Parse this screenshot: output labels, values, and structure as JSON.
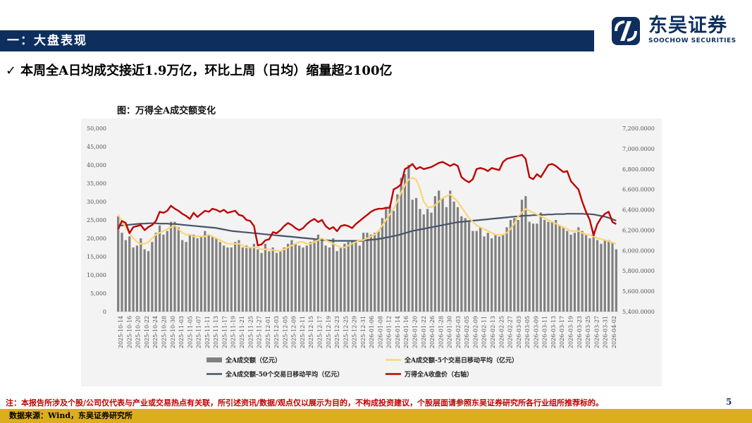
{
  "header": {
    "title": "一：大盘表现"
  },
  "logo": {
    "name_cn": "东吴证券",
    "name_en": "SOOCHOW SECURITIES"
  },
  "headline": {
    "check": "✓",
    "text": "本周全A日均成交接近1.9万亿，环比上周（日均）缩量超2100亿"
  },
  "figure": {
    "title": "图：万得全A成交额变化"
  },
  "footer": {
    "note": "注：本报告所涉及个股/公司仅代表与产业或交易热点有关联，所引述资讯/数据/观点仅以展示为目的，不构成投资建议，个股层面请参照东吴证券研究所各行业组所推荐标的。",
    "page": "5",
    "source": "数据来源：Wind，东吴证券研究所"
  },
  "colors": {
    "brand": "#0e2f5e",
    "bar": "#808080",
    "ma5": "#fcd573",
    "ma50": "#44546a",
    "index": "#c00000",
    "source_bar": "#dcae1d"
  },
  "chart_data": {
    "type": "bar",
    "title": "万得全A成交额变化",
    "y_left": {
      "min": 0,
      "max": 50000,
      "ticks": [
        "50,000",
        "45,000",
        "40,000",
        "35,000",
        "30,000",
        "25,000",
        "20,000",
        "15,000",
        "10,000",
        "5,000",
        "0"
      ]
    },
    "y_right": {
      "min": 5400,
      "max": 7200,
      "ticks": [
        "7,200.0000",
        "7,000.0000",
        "6,800.0000",
        "6,600.0000",
        "6,400.0000",
        "6,200.0000",
        "6,000.0000",
        "5,800.0000",
        "5,600.0000",
        "5,400.0000"
      ]
    },
    "x_tick_labels": [
      "2025-10-14",
      "2025-10-16",
      "2025-10-20",
      "2025-10-22",
      "2025-10-24",
      "2025-10-28",
      "2025-10-30",
      "2025-11-03",
      "2025-11-05",
      "2025-11-07",
      "2025-11-11",
      "2025-11-13",
      "2025-11-17",
      "2025-11-19",
      "2025-11-21",
      "2025-11-25",
      "2025-11-27",
      "2025-12-01",
      "2025-12-03",
      "2025-12-05",
      "2025-12-09",
      "2025-12-11",
      "2025-12-15",
      "2025-12-17",
      "2025-12-19",
      "2025-12-23",
      "2025-12-25",
      "2025-12-29",
      "2025-12-31",
      "2026-01-06",
      "2026-01-08",
      "2026-01-12",
      "2026-01-14",
      "2026-01-16",
      "2026-01-20",
      "2026-01-22",
      "2026-01-26",
      "2026-01-28",
      "2026-01-30",
      "2026-02-03",
      "2026-02-05",
      "2026-02-09",
      "2026-02-11",
      "2026-02-13",
      "2026-02-25",
      "2026-02-27",
      "2026-03-03",
      "2026-03-05",
      "2026-03-09",
      "2026-03-11",
      "2026-03-13",
      "2026-03-17",
      "2026-03-19",
      "2026-03-23",
      "2026-03-25",
      "2026-03-27",
      "2026-03-31",
      "2026-04-02"
    ],
    "legend": [
      "全A成交额（亿元）",
      "全A成交额-5个交易日移动平均（亿元）",
      "全A成交额-50个交易日移动平均（亿元）",
      "万得全A收盘价（右轴）"
    ],
    "series": [
      {
        "name": "全A成交额（亿元）",
        "type": "bar",
        "axis": "left",
        "values": [
          26000,
          21500,
          19500,
          20500,
          17500,
          18000,
          20000,
          17000,
          16500,
          19000,
          21500,
          23500,
          21000,
          22000,
          24500,
          24500,
          23000,
          19500,
          19000,
          21000,
          21000,
          20000,
          20500,
          22000,
          21000,
          20500,
          20000,
          19000,
          18000,
          17500,
          17500,
          19000,
          19500,
          17500,
          18000,
          17500,
          18500,
          17000,
          16000,
          18500,
          16500,
          17500,
          16000,
          16500,
          17500,
          18500,
          19500,
          18500,
          18000,
          17500,
          18000,
          19000,
          19500,
          21000,
          20000,
          18000,
          17500,
          20000,
          16500,
          17500,
          18500,
          19000,
          19500,
          19000,
          18000,
          21500,
          21500,
          21000,
          21500,
          22000,
          25500,
          28500,
          29000,
          27500,
          32000,
          36500,
          37500,
          40000,
          30500,
          31000,
          28000,
          26500,
          28000,
          27000,
          31500,
          33000,
          31000,
          28500,
          33000,
          30000,
          28500,
          26000,
          25500,
          24500,
          22000,
          22000,
          23000,
          20500,
          21500,
          20000,
          21000,
          20500,
          21000,
          23000,
          25000,
          25500,
          25000,
          30500,
          31500,
          24500,
          24000,
          24000,
          27000,
          25000,
          24500,
          24500,
          25000,
          23500,
          23000,
          22000,
          21000,
          21500,
          23000,
          22000,
          21000,
          20000,
          22000,
          19500,
          18500,
          19500,
          19500,
          19000,
          17000
        ]
      },
      {
        "name": "全A成交额-5个交易日移动平均（亿元）",
        "type": "line",
        "axis": "left",
        "values": [
          26500,
          24500,
          23000,
          21500,
          20000,
          19000,
          18500,
          18500,
          19000,
          20000,
          21000,
          21500,
          22000,
          22500,
          23000,
          23500,
          22500,
          21500,
          21000,
          21000,
          20500,
          20500,
          20500,
          20500,
          21000,
          20500,
          20000,
          19500,
          19000,
          18500,
          18500,
          18500,
          18500,
          18000,
          17500,
          17500,
          17500,
          17500,
          17000,
          17000,
          17000,
          16800,
          16600,
          16500,
          17000,
          17500,
          18000,
          18500,
          19000,
          19000,
          18500,
          18500,
          19000,
          19500,
          20000,
          19500,
          19000,
          18500,
          18000,
          17500,
          17500,
          18000,
          18500,
          19000,
          19500,
          19500,
          20000,
          20500,
          21000,
          22000,
          23500,
          25000,
          26500,
          28000,
          30000,
          32500,
          34500,
          36000,
          36500,
          36000,
          33500,
          30000,
          28500,
          28500,
          29000,
          30000,
          31000,
          31500,
          32000,
          31000,
          30000,
          28500,
          27000,
          25500,
          24500,
          23500,
          23000,
          22500,
          22000,
          21500,
          21000,
          21000,
          21000,
          21500,
          22500,
          24000,
          26000,
          27000,
          28000,
          27500,
          27000,
          26500,
          26000,
          25500,
          25000,
          24500,
          24000,
          23500,
          23000,
          22500,
          22000,
          22000,
          22000,
          21500,
          21000,
          21000,
          20500,
          20000,
          19800,
          19500,
          19200,
          18800,
          18500
        ]
      },
      {
        "name": "全A成交额-50个交易日移动平均（亿元）",
        "type": "line",
        "axis": "left",
        "values": [
          23500,
          23500,
          23600,
          23700,
          23800,
          23900,
          24000,
          24000,
          24100,
          24100,
          24100,
          24000,
          24000,
          24000,
          23900,
          23900,
          23800,
          23700,
          23600,
          23500,
          23400,
          23300,
          23200,
          23100,
          23000,
          22900,
          22800,
          22600,
          22400,
          22200,
          22000,
          21900,
          21800,
          21700,
          21600,
          21500,
          21400,
          21300,
          21200,
          21100,
          21000,
          20900,
          20800,
          20700,
          20600,
          20500,
          20400,
          20300,
          20200,
          20100,
          20000,
          19900,
          19800,
          19700,
          19600,
          19500,
          19400,
          19300,
          19300,
          19300,
          19300,
          19300,
          19300,
          19300,
          19300,
          19400,
          19500,
          19600,
          19700,
          19800,
          20000,
          20200,
          20400,
          20600,
          20800,
          21100,
          21400,
          21700,
          22000,
          22200,
          22400,
          22600,
          22800,
          23000,
          23200,
          23400,
          23600,
          23800,
          24000,
          24200,
          24400,
          24500,
          24600,
          24700,
          24800,
          24900,
          25000,
          25100,
          25200,
          25300,
          25400,
          25500,
          25600,
          25700,
          25800,
          25900,
          26000,
          26100,
          26200,
          26200,
          26300,
          26300,
          26400,
          26400,
          26500,
          26500,
          26600,
          26600,
          26600,
          26700,
          26700,
          26700,
          26700,
          26700,
          26600,
          26600,
          26500,
          26300,
          26100,
          25900,
          25600,
          25200,
          24800
        ]
      },
      {
        "name": "万得全A收盘价（右轴）",
        "type": "line",
        "axis": "right",
        "values": [
          6210,
          6290,
          6270,
          6170,
          6230,
          6240,
          6250,
          6200,
          6230,
          6250,
          6290,
          6380,
          6370,
          6390,
          6440,
          6410,
          6390,
          6360,
          6340,
          6310,
          6370,
          6330,
          6360,
          6390,
          6380,
          6410,
          6400,
          6380,
          6400,
          6370,
          6380,
          6390,
          6350,
          6340,
          6300,
          6290,
          6240,
          6050,
          6060,
          6100,
          6110,
          6180,
          6170,
          6200,
          6240,
          6270,
          6250,
          6220,
          6200,
          6220,
          6260,
          6290,
          6310,
          6280,
          6300,
          6240,
          6210,
          6230,
          6190,
          6240,
          6250,
          6240,
          6220,
          6260,
          6290,
          6320,
          6350,
          6380,
          6400,
          6410,
          6410,
          6420,
          6420,
          6600,
          6620,
          6650,
          6800,
          6820,
          6850,
          6800,
          6820,
          6800,
          6810,
          6820,
          6840,
          6860,
          6870,
          6850,
          6830,
          6850,
          6830,
          6720,
          6690,
          6670,
          6700,
          6800,
          6810,
          6800,
          6780,
          6810,
          6800,
          6790,
          6870,
          6900,
          6910,
          6920,
          6930,
          6940,
          6900,
          6720,
          6700,
          6750,
          6720,
          6780,
          6840,
          6850,
          6830,
          6800,
          6770,
          6780,
          6680,
          6640,
          6600,
          6480,
          6380,
          6300,
          6150,
          6260,
          6320,
          6360,
          6380,
          6280,
          6260
        ]
      }
    ]
  }
}
